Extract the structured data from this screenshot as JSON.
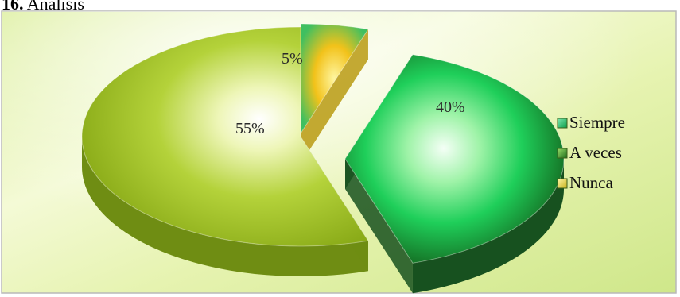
{
  "heading": {
    "number": "16.",
    "text": "Análisis"
  },
  "chart_data": {
    "type": "pie",
    "three_d": true,
    "exploded": true,
    "categories": [
      "Siempre",
      "A veces",
      "Nunca"
    ],
    "values": [
      5,
      40,
      55
    ],
    "value_labels": [
      "5%",
      "40%",
      "55%"
    ],
    "legend": {
      "position": "right",
      "entries": [
        "Siempre",
        "A veces",
        "Nunca"
      ]
    },
    "colors": {
      "siempre": "#2fbf6a",
      "a_veces": "#1f8a2c",
      "nunca": "#9cbf20",
      "background_light": "#f6fbd8",
      "background_green": "#c8e67a"
    }
  }
}
